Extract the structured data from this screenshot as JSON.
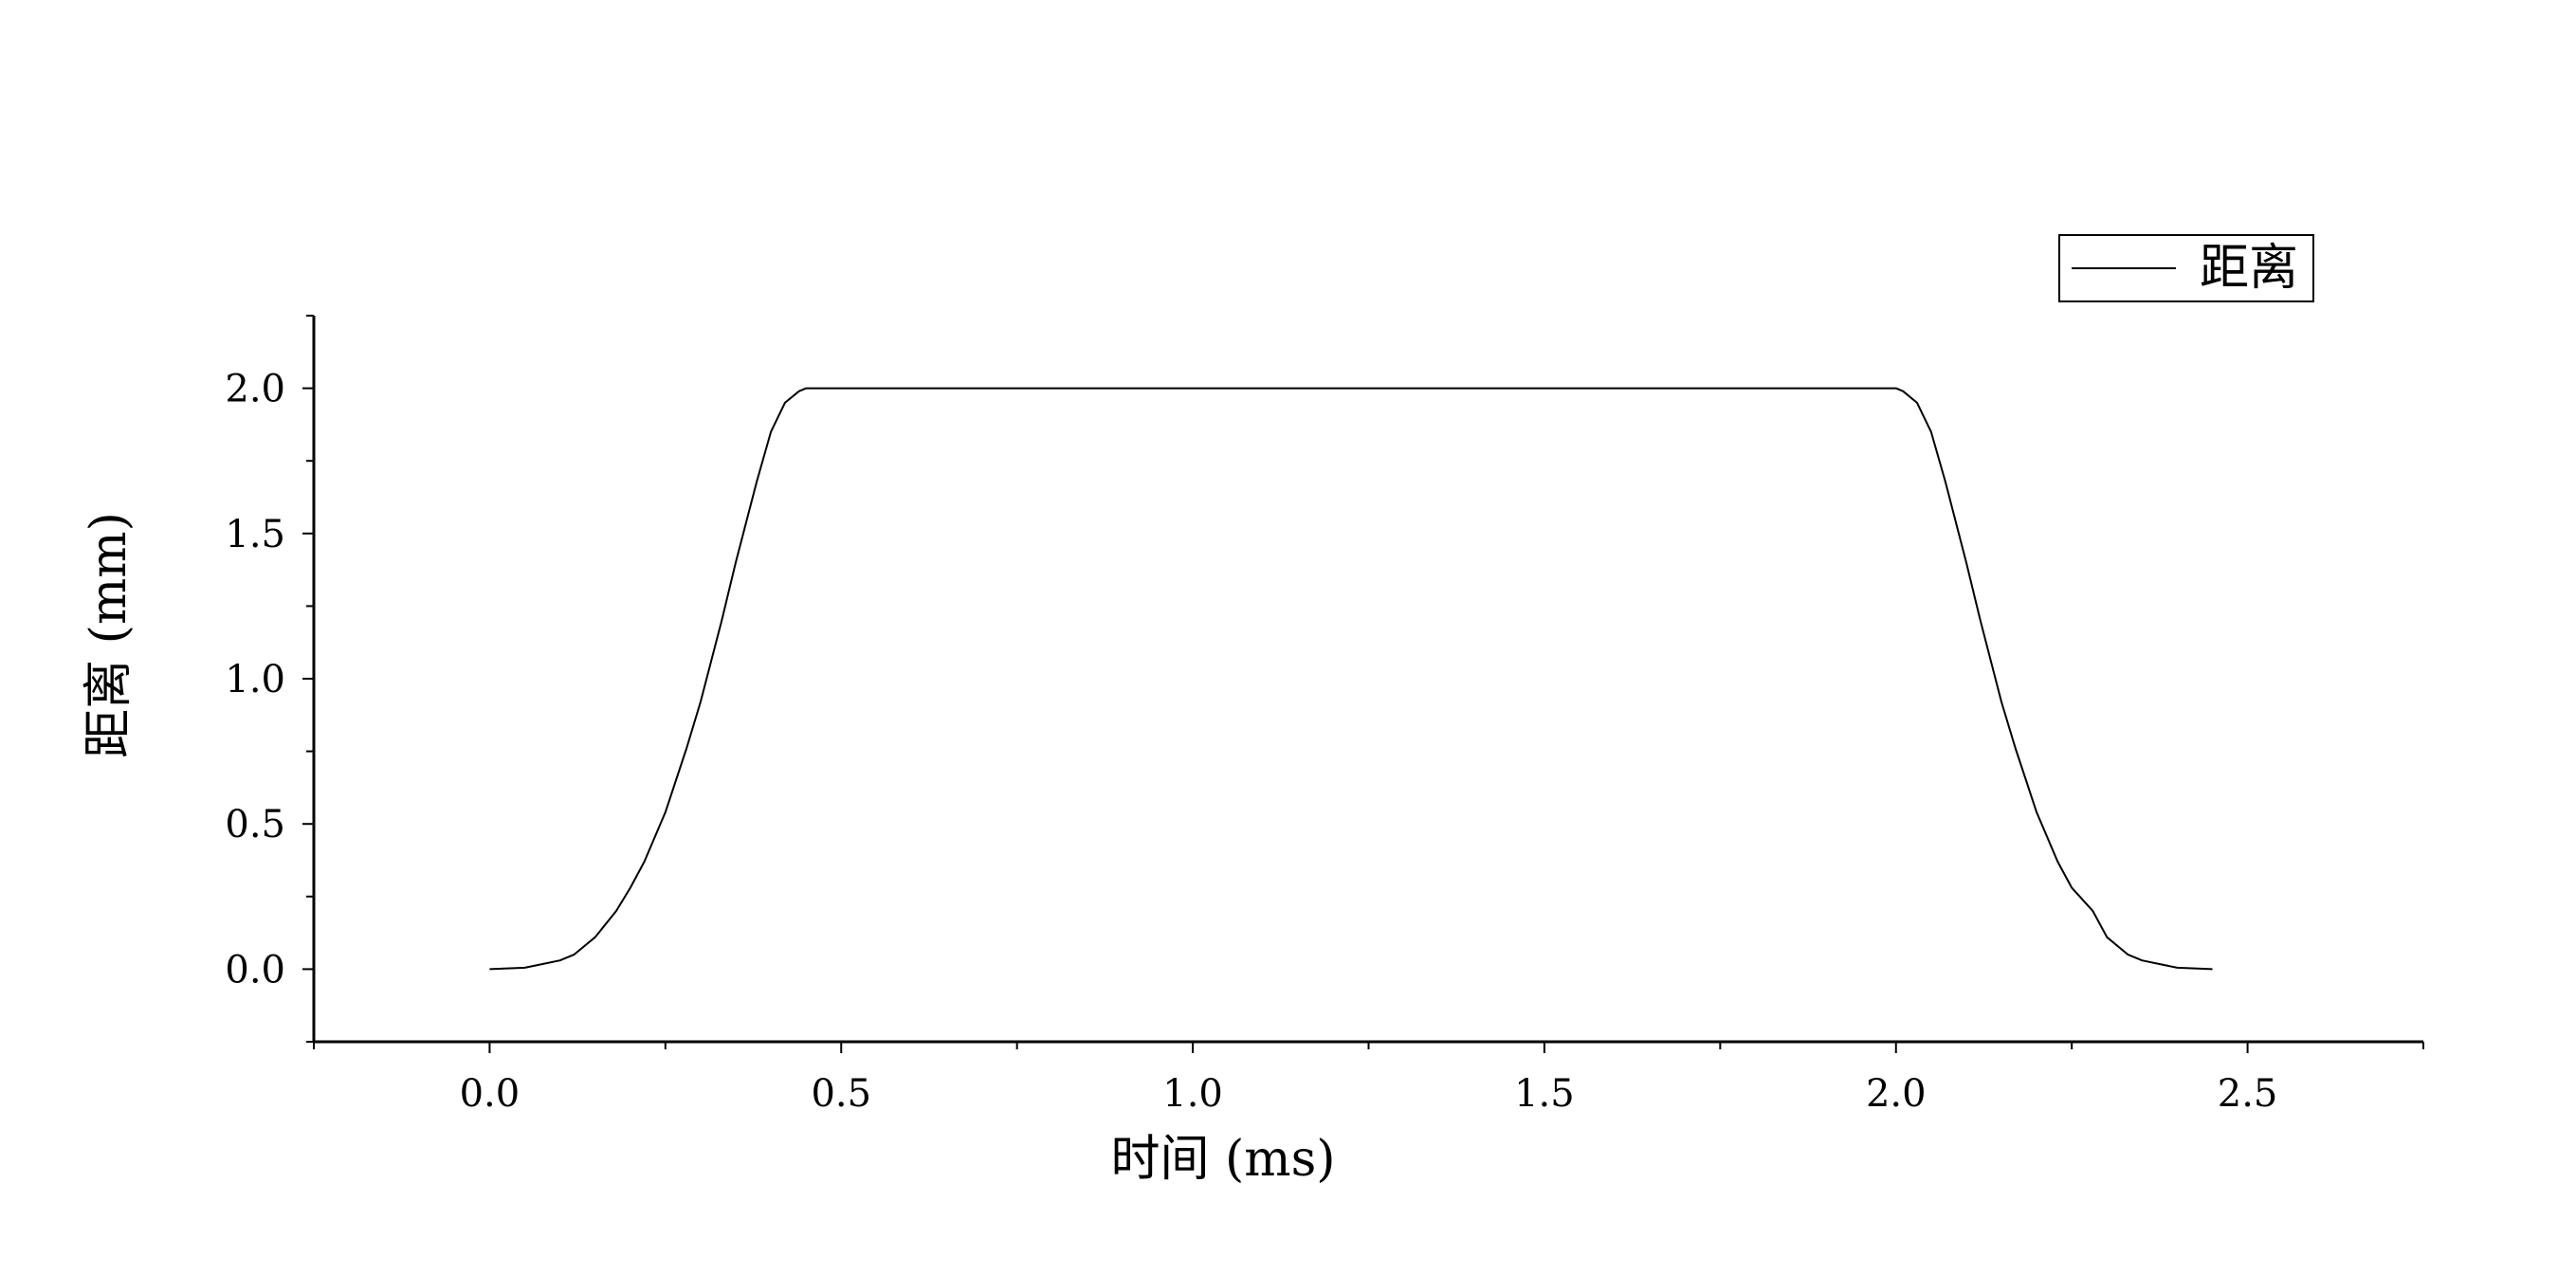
{
  "chart_data": {
    "type": "line",
    "xlabel": "时间 (ms)",
    "ylabel": "距离 (mm)",
    "xlim": [
      -0.25,
      2.75
    ],
    "ylim": [
      -0.25,
      2.25
    ],
    "x_ticks": [
      0.0,
      0.5,
      1.0,
      1.5,
      2.0,
      2.5
    ],
    "x_tick_labels": [
      "0.0",
      "0.5",
      "1.0",
      "1.5",
      "2.0",
      "2.5"
    ],
    "y_ticks": [
      0.0,
      0.5,
      1.0,
      1.5,
      2.0
    ],
    "y_tick_labels": [
      "0.0",
      "0.5",
      "1.0",
      "1.5",
      "2.0"
    ],
    "grid": false,
    "legend_position": "top-right",
    "series": [
      {
        "name": "距离",
        "color": "#000000",
        "x": [
          0.0,
          0.05,
          0.1,
          0.12,
          0.15,
          0.18,
          0.2,
          0.22,
          0.25,
          0.28,
          0.3,
          0.33,
          0.35,
          0.38,
          0.4,
          0.42,
          0.44,
          0.45,
          0.5,
          1.0,
          1.5,
          2.0,
          2.01,
          2.03,
          2.05,
          2.07,
          2.1,
          2.12,
          2.15,
          2.17,
          2.2,
          2.23,
          2.25,
          2.28,
          2.3,
          2.33,
          2.35,
          2.4,
          2.45
        ],
        "y": [
          0.0,
          0.005,
          0.03,
          0.05,
          0.11,
          0.2,
          0.28,
          0.37,
          0.54,
          0.76,
          0.92,
          1.2,
          1.4,
          1.68,
          1.85,
          1.95,
          1.99,
          2.0,
          2.0,
          2.0,
          2.0,
          2.0,
          1.99,
          1.95,
          1.85,
          1.68,
          1.4,
          1.2,
          0.92,
          0.76,
          0.54,
          0.37,
          0.28,
          0.2,
          0.11,
          0.05,
          0.03,
          0.005,
          0.0
        ]
      }
    ]
  }
}
